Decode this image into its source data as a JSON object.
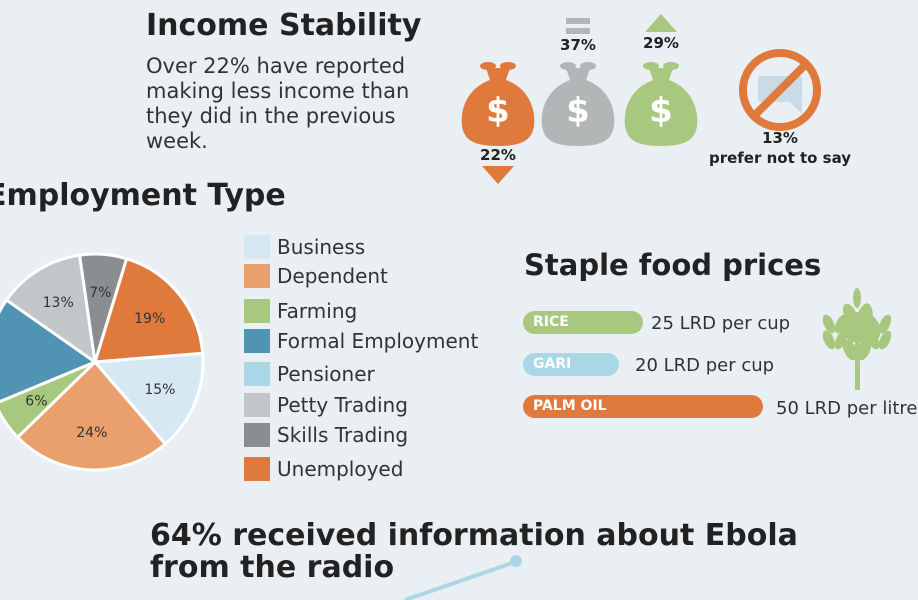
{
  "income": {
    "title": "Income Stability",
    "description": "Over 22% have reported making less income than they did in the previous week.",
    "items": [
      {
        "label": "22%",
        "trend": "down",
        "color": "#e07a3c"
      },
      {
        "label": "37%",
        "trend": "same",
        "color": "#b3b6b7"
      },
      {
        "label": "29%",
        "trend": "up",
        "color": "#a8c880"
      }
    ],
    "no_answer": {
      "pct": "13%",
      "label": "prefer not to say",
      "color": "#e07a3c"
    }
  },
  "employment": {
    "title": "Employment Type",
    "legend": [
      {
        "label": "Business",
        "color": "#d6e8f2"
      },
      {
        "label": "Dependent",
        "color": "#e9a06c"
      },
      {
        "label": "Farming",
        "color": "#a8c880"
      },
      {
        "label": "Formal Employment",
        "color": "#5193b2"
      },
      {
        "label": "Pensioner",
        "color": "#a9d7e6"
      },
      {
        "label": "Petty Trading",
        "color": "#c3c6c8"
      },
      {
        "label": "Skills Trading",
        "color": "#8b8e90"
      },
      {
        "label": "Unemployed",
        "color": "#e07a3c"
      }
    ]
  },
  "chart_data": {
    "type": "pie",
    "title": "Employment Type",
    "slices": [
      {
        "label": "Unemployed",
        "value": 19,
        "text": "19%",
        "color": "#e07a3c"
      },
      {
        "label": "Business",
        "value": 15,
        "text": "15%",
        "color": "#d6e8f2"
      },
      {
        "label": "Dependent",
        "value": 24,
        "text": "24%",
        "color": "#e9a06c"
      },
      {
        "label": "Farming",
        "value": 6,
        "text": "6%",
        "color": "#a8c880"
      },
      {
        "label": "Formal Employment",
        "value": 16,
        "text": "",
        "color": "#5193b2"
      },
      {
        "label": "Petty Trading",
        "value": 13,
        "text": "13%",
        "color": "#c3c6c8"
      },
      {
        "label": "Skills Trading",
        "value": 7,
        "text": "7%",
        "color": "#8b8e90"
      }
    ]
  },
  "food": {
    "title": "Staple food prices",
    "items": [
      {
        "name": "RICE",
        "price": "25 LRD per cup",
        "value": 25,
        "color": "#a8c880"
      },
      {
        "name": "GARI",
        "price": "20 LRD per cup",
        "value": 20,
        "color": "#a9d7e6"
      },
      {
        "name": "PALM OIL",
        "price": "50 LRD per litre",
        "value": 50,
        "color": "#e07a3c"
      }
    ]
  },
  "ebola": {
    "title": "64% received information about Ebola from the radio"
  }
}
